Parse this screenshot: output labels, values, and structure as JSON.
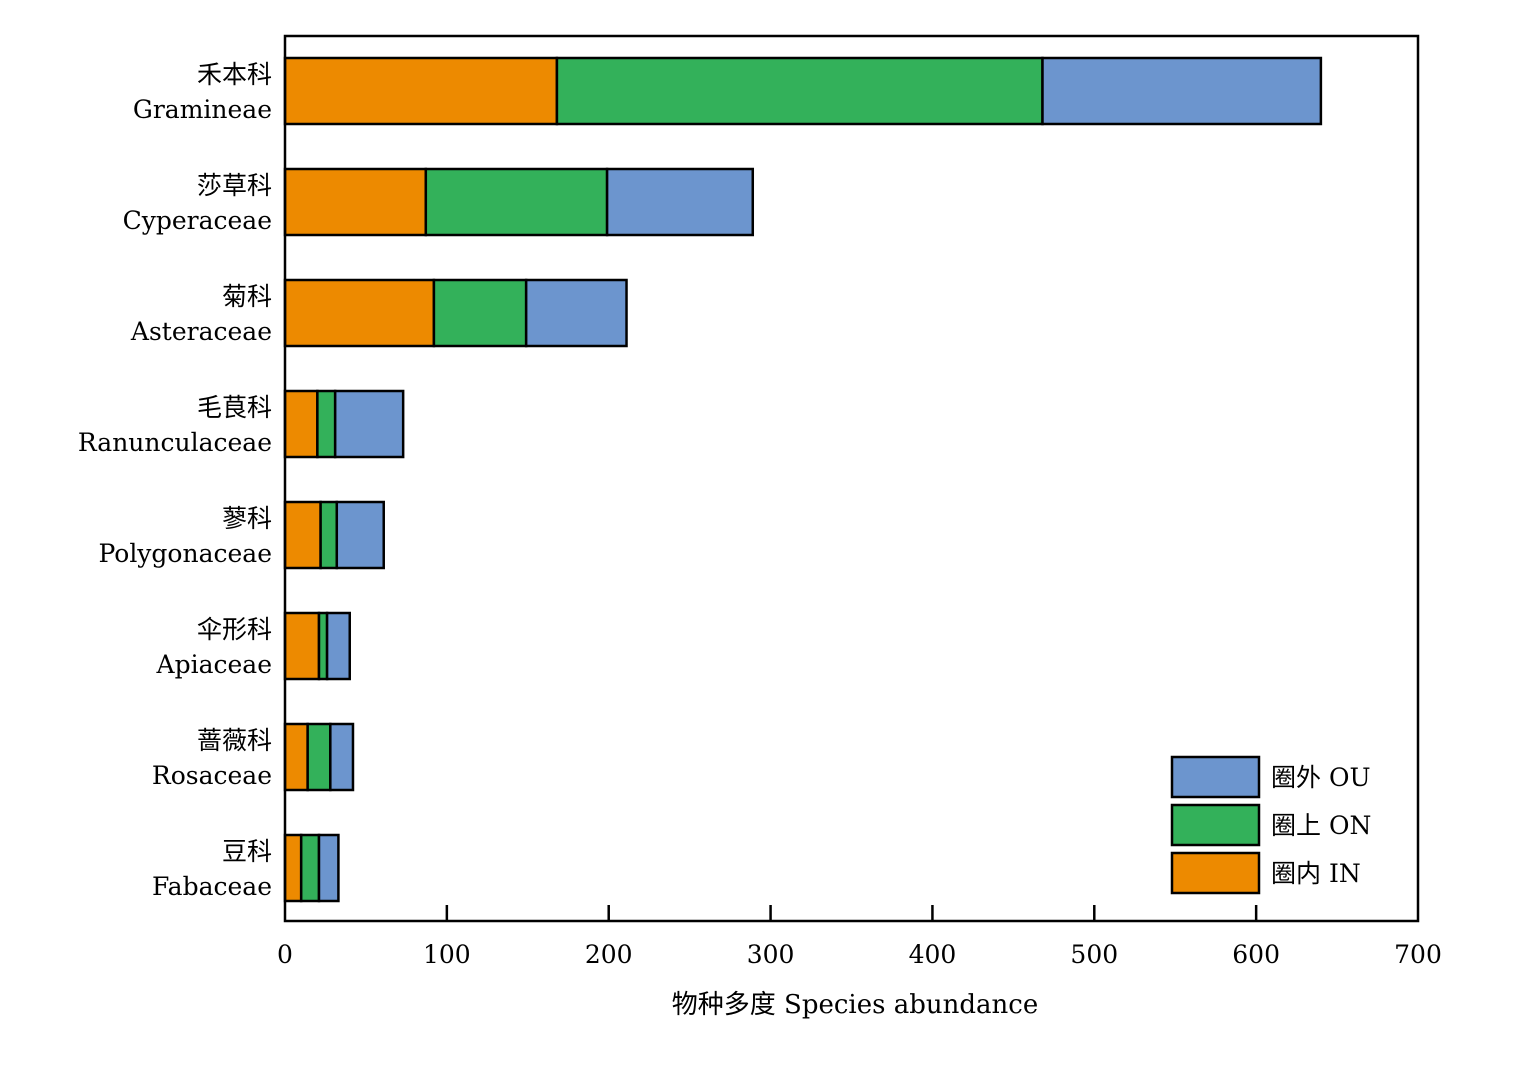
{
  "chart_data": {
    "type": "bar",
    "orientation": "horizontal",
    "stacked": true,
    "categories": [
      {
        "zh": "禾本科",
        "en": "Gramineae"
      },
      {
        "zh": "莎草科",
        "en": "Cyperaceae"
      },
      {
        "zh": "菊科",
        "en": "Asteraceae"
      },
      {
        "zh": "毛茛科",
        "en": "Ranunculaceae"
      },
      {
        "zh": "蓼科",
        "en": "Polygonaceae"
      },
      {
        "zh": "伞形科",
        "en": "Apiaceae"
      },
      {
        "zh": "蔷薇科",
        "en": "Rosaceae"
      },
      {
        "zh": "豆科",
        "en": "Fabaceae"
      }
    ],
    "series": [
      {
        "name": "圈内 IN",
        "color": "#ED8A00",
        "values": [
          168,
          87,
          92,
          20,
          22,
          21,
          14,
          10
        ]
      },
      {
        "name": "圈上 ON",
        "color": "#33B15A",
        "values": [
          300,
          112,
          57,
          11,
          10,
          5,
          14,
          11
        ]
      },
      {
        "name": "圈外 OU",
        "color": "#6C95CE",
        "values": [
          172,
          90,
          62,
          42,
          29,
          14,
          14,
          12
        ]
      }
    ],
    "xlabel": "物种多度 Species abundance",
    "ylabel": "",
    "xlim": [
      0,
      700
    ],
    "xticks": [
      0,
      100,
      200,
      300,
      400,
      500,
      600,
      700
    ],
    "grid": false,
    "legend": {
      "placement": "bottom-right",
      "order": [
        "圈外 OU",
        "圈上 ON",
        "圈内 IN"
      ]
    }
  }
}
